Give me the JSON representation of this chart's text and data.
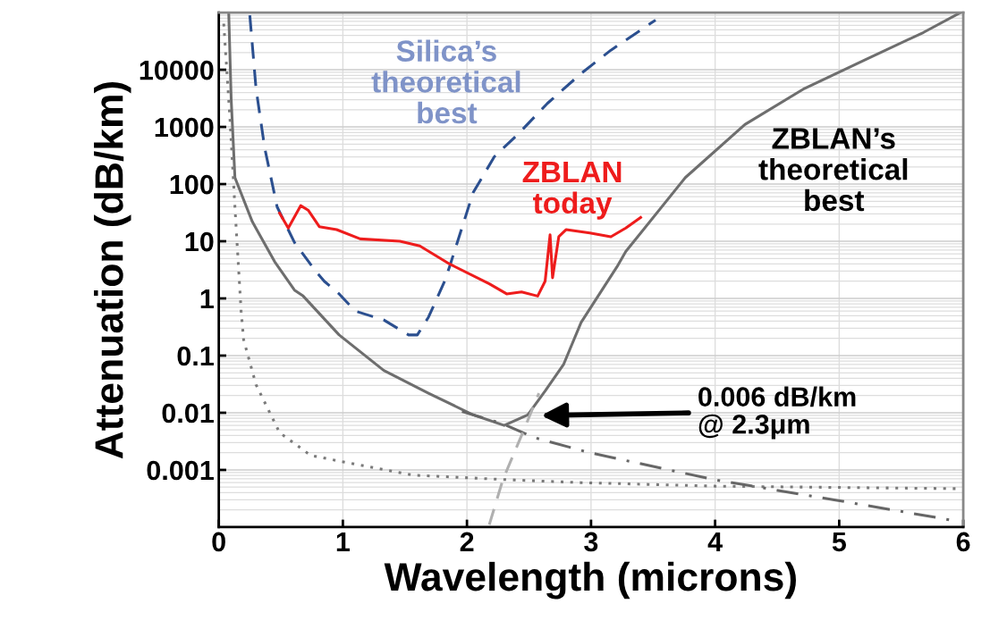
{
  "chart_data": {
    "type": "line",
    "xlabel": "Wavelength (microns)",
    "ylabel": "Attenuation (dB/km)",
    "log": "y",
    "xlim": [
      0,
      6
    ],
    "xticks": [
      0,
      1,
      2,
      3,
      4,
      5,
      6
    ],
    "ylim": [
      0.0001,
      100000
    ],
    "yticks": [
      0.001,
      0.01,
      0.1,
      1,
      10,
      100,
      1000,
      10000
    ],
    "grid": true,
    "legend": false,
    "series": [
      {
        "name": "Silica’s\ntheoretical\nbest",
        "color": "#2b4f8f",
        "line_style": "dashed",
        "x": [
          0.25,
          0.3,
          0.37,
          0.47,
          0.61,
          0.78,
          0.85,
          0.97,
          1.1,
          1.33,
          1.53,
          1.6,
          1.69,
          1.82,
          1.86,
          2.05,
          2.22,
          2.42,
          2.65,
          2.92,
          3.16,
          3.52
        ],
        "values": [
          90000,
          4700,
          430,
          40,
          9.5,
          3.0,
          2.0,
          1.2,
          0.6,
          0.42,
          0.23,
          0.23,
          0.47,
          2.0,
          3.6,
          71,
          300,
          780,
          2600,
          8600,
          22000,
          74000
        ]
      },
      {
        "name": "ZBLAN\ntoday",
        "color": "#ee1c1c",
        "line_style": "solid",
        "x": [
          0.49,
          0.56,
          0.66,
          0.72,
          0.81,
          0.95,
          1.14,
          1.46,
          1.62,
          1.86,
          2.18,
          2.32,
          2.44,
          2.57,
          2.63,
          2.67,
          2.69,
          2.74,
          2.8,
          2.99,
          3.16,
          3.28,
          3.4
        ],
        "values": [
          31,
          17,
          42,
          35,
          18,
          16,
          11,
          10,
          8.3,
          4.0,
          1.8,
          1.2,
          1.3,
          1.1,
          2.0,
          13,
          2.3,
          12,
          16,
          14,
          12,
          17,
          26
        ]
      },
      {
        "name": "ZBLAN’s\ntheoretical\nbest",
        "color": "#6e6e6e",
        "line_style": "solid",
        "x": [
          0.08,
          0.1,
          0.13,
          0.27,
          0.45,
          0.61,
          0.68,
          0.97,
          1.33,
          1.69,
          2.05,
          2.3,
          2.49,
          2.63,
          2.78,
          2.92,
          3.21,
          3.28,
          3.76,
          4.24,
          4.72,
          5.21,
          5.68,
          5.97
        ],
        "values": [
          100000,
          3000,
          130,
          22,
          4.4,
          1.4,
          1.1,
          0.23,
          0.055,
          0.022,
          0.0092,
          0.006,
          0.0092,
          0.024,
          0.071,
          0.38,
          3.6,
          6.6,
          130,
          1100,
          4700,
          15000,
          45000,
          98000
        ]
      },
      {
        "color": "#7a7a7a",
        "line_style": "dotted",
        "x": [
          0.04,
          0.09,
          0.13,
          0.18,
          0.2,
          0.3,
          0.49,
          0.74,
          0.99,
          1.57,
          2.29,
          2.92,
          4.0,
          5.97
        ],
        "values": [
          64000,
          1400,
          40,
          0.6,
          0.19,
          0.031,
          0.0045,
          0.0018,
          0.0014,
          0.00081,
          0.00068,
          0.0006,
          0.00052,
          0.00047
        ]
      },
      {
        "color": "#666666",
        "line_style": "dashdot",
        "x": [
          1.96,
          2.29,
          2.54,
          2.99,
          4.0,
          4.96,
          5.97
        ],
        "values": [
          0.0105,
          0.0064,
          0.0037,
          0.002,
          0.00067,
          0.0003,
          0.000125
        ]
      },
      {
        "color": "#b0b0b0",
        "line_style": "dashed",
        "x": [
          2.18,
          2.29,
          2.44,
          2.58
        ],
        "values": [
          0.00011,
          0.00068,
          0.004,
          0.022
        ]
      }
    ],
    "annotations": [
      "0.006 dB/km\n@ 2.3μm"
    ]
  }
}
